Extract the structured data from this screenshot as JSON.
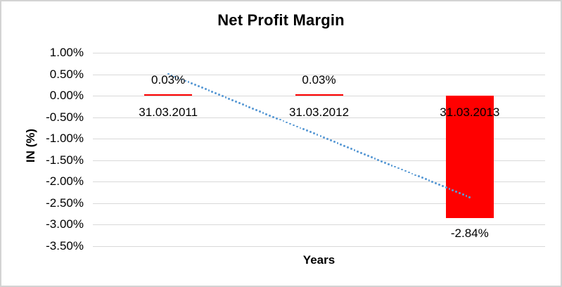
{
  "chart_data": {
    "type": "bar",
    "title": "Net Profit Margin",
    "xlabel": "Years",
    "ylabel": "IN (%)",
    "categories": [
      "31.03.2011",
      "31.03.2012",
      "31.03.2013"
    ],
    "values": [
      0.03,
      0.03,
      -2.84
    ],
    "data_labels": [
      "0.03%",
      "0.03%",
      "-2.84%"
    ],
    "yticks": [
      "1.00%",
      "0.50%",
      "0.00%",
      "-0.50%",
      "-1.00%",
      "-1.50%",
      "-2.00%",
      "-2.50%",
      "-3.00%",
      "-3.50%"
    ],
    "ytick_values": [
      1.0,
      0.5,
      0.0,
      -0.5,
      -1.0,
      -1.5,
      -2.0,
      -2.5,
      -3.0,
      -3.5
    ],
    "ylim": [
      -3.5,
      1.0
    ],
    "grid": true,
    "legend": "none",
    "bar_color": "#ff0000",
    "gridline_color": "#d9d9d9",
    "text_color": "#000000",
    "trendline": {
      "type": "linear",
      "style": "dotted",
      "color": "#5b9bd5",
      "endpoint_values": [
        0.508,
        -2.362
      ]
    }
  }
}
